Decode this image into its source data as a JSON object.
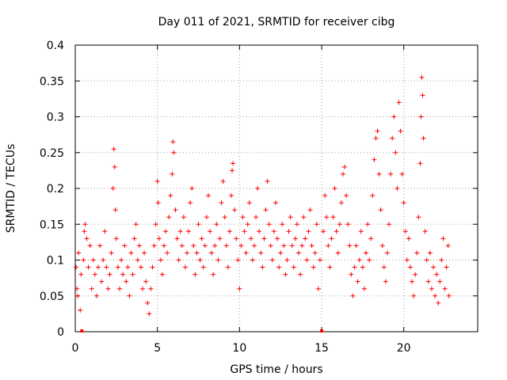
{
  "chart_data": {
    "type": "scatter",
    "title": "Day 011 of 2021, SRMTID for receiver cibg",
    "xlabel": "GPS time / hours",
    "ylabel": "SRMTID / TECUs",
    "xlim": [
      0,
      24.5
    ],
    "ylim": [
      0,
      0.4
    ],
    "x_ticks": [
      0,
      5,
      10,
      15,
      20
    ],
    "x_tick_labels": [
      "0",
      "5",
      "10",
      "15",
      "20"
    ],
    "y_ticks": [
      0,
      0.05,
      0.1,
      0.15,
      0.2,
      0.25,
      0.3,
      0.35,
      0.4
    ],
    "y_tick_labels": [
      "0",
      "0.05",
      "0.1",
      "0.15",
      "0.2",
      "0.25",
      "0.3",
      "0.35",
      "0.4"
    ],
    "grid": true,
    "marker": "+",
    "color": "#ff0000",
    "data_gaps_marked_at_hours": [
      0.4,
      15.0
    ],
    "series": [
      {
        "name": "SRMTID",
        "points": [
          [
            0.05,
            0.09
          ],
          [
            0.1,
            0.06
          ],
          [
            0.15,
            0.05
          ],
          [
            0.2,
            0.11
          ],
          [
            0.3,
            0.03
          ],
          [
            0.35,
            0.08
          ],
          [
            0.5,
            0.1
          ],
          [
            0.55,
            0.14
          ],
          [
            0.6,
            0.15
          ],
          [
            0.7,
            0.13
          ],
          [
            0.8,
            0.09
          ],
          [
            0.9,
            0.12
          ],
          [
            1.0,
            0.06
          ],
          [
            1.1,
            0.1
          ],
          [
            1.2,
            0.08
          ],
          [
            1.3,
            0.05
          ],
          [
            1.4,
            0.09
          ],
          [
            1.5,
            0.12
          ],
          [
            1.6,
            0.07
          ],
          [
            1.7,
            0.1
          ],
          [
            1.8,
            0.14
          ],
          [
            1.9,
            0.09
          ],
          [
            2.0,
            0.06
          ],
          [
            2.1,
            0.08
          ],
          [
            2.2,
            0.11
          ],
          [
            2.3,
            0.2
          ],
          [
            2.35,
            0.255
          ],
          [
            2.4,
            0.23
          ],
          [
            2.45,
            0.17
          ],
          [
            2.5,
            0.13
          ],
          [
            2.6,
            0.09
          ],
          [
            2.7,
            0.06
          ],
          [
            2.8,
            0.1
          ],
          [
            2.9,
            0.08
          ],
          [
            3.0,
            0.12
          ],
          [
            3.1,
            0.07
          ],
          [
            3.2,
            0.09
          ],
          [
            3.3,
            0.05
          ],
          [
            3.4,
            0.11
          ],
          [
            3.5,
            0.08
          ],
          [
            3.6,
            0.13
          ],
          [
            3.7,
            0.15
          ],
          [
            3.8,
            0.1
          ],
          [
            3.9,
            0.12
          ],
          [
            4.0,
            0.09
          ],
          [
            4.1,
            0.06
          ],
          [
            4.2,
            0.11
          ],
          [
            4.3,
            0.07
          ],
          [
            4.4,
            0.04
          ],
          [
            4.5,
            0.025
          ],
          [
            4.6,
            0.06
          ],
          [
            4.7,
            0.09
          ],
          [
            4.8,
            0.12
          ],
          [
            4.9,
            0.15
          ],
          [
            5.0,
            0.21
          ],
          [
            5.05,
            0.18
          ],
          [
            5.1,
            0.13
          ],
          [
            5.2,
            0.1
          ],
          [
            5.3,
            0.08
          ],
          [
            5.4,
            0.12
          ],
          [
            5.5,
            0.14
          ],
          [
            5.6,
            0.11
          ],
          [
            5.7,
            0.16
          ],
          [
            5.8,
            0.19
          ],
          [
            5.9,
            0.22
          ],
          [
            5.95,
            0.265
          ],
          [
            6.0,
            0.25
          ],
          [
            6.1,
            0.17
          ],
          [
            6.2,
            0.13
          ],
          [
            6.3,
            0.1
          ],
          [
            6.4,
            0.14
          ],
          [
            6.5,
            0.12
          ],
          [
            6.6,
            0.16
          ],
          [
            6.7,
            0.09
          ],
          [
            6.8,
            0.11
          ],
          [
            6.9,
            0.14
          ],
          [
            7.0,
            0.18
          ],
          [
            7.1,
            0.2
          ],
          [
            7.2,
            0.12
          ],
          [
            7.3,
            0.08
          ],
          [
            7.4,
            0.11
          ],
          [
            7.5,
            0.15
          ],
          [
            7.6,
            0.1
          ],
          [
            7.7,
            0.13
          ],
          [
            7.8,
            0.09
          ],
          [
            7.9,
            0.12
          ],
          [
            8.0,
            0.16
          ],
          [
            8.1,
            0.19
          ],
          [
            8.2,
            0.14
          ],
          [
            8.3,
            0.11
          ],
          [
            8.4,
            0.08
          ],
          [
            8.5,
            0.12
          ],
          [
            8.6,
            0.15
          ],
          [
            8.7,
            0.1
          ],
          [
            8.8,
            0.13
          ],
          [
            8.9,
            0.18
          ],
          [
            9.0,
            0.21
          ],
          [
            9.1,
            0.16
          ],
          [
            9.2,
            0.12
          ],
          [
            9.3,
            0.09
          ],
          [
            9.4,
            0.14
          ],
          [
            9.5,
            0.19
          ],
          [
            9.55,
            0.225
          ],
          [
            9.6,
            0.235
          ],
          [
            9.7,
            0.17
          ],
          [
            9.8,
            0.13
          ],
          [
            9.9,
            0.1
          ],
          [
            10.0,
            0.06
          ],
          [
            10.1,
            0.12
          ],
          [
            10.2,
            0.16
          ],
          [
            10.3,
            0.14
          ],
          [
            10.4,
            0.11
          ],
          [
            10.5,
            0.15
          ],
          [
            10.6,
            0.18
          ],
          [
            10.7,
            0.13
          ],
          [
            10.8,
            0.1
          ],
          [
            10.9,
            0.12
          ],
          [
            11.0,
            0.16
          ],
          [
            11.1,
            0.2
          ],
          [
            11.2,
            0.14
          ],
          [
            11.3,
            0.11
          ],
          [
            11.4,
            0.09
          ],
          [
            11.5,
            0.13
          ],
          [
            11.6,
            0.17
          ],
          [
            11.7,
            0.21
          ],
          [
            11.8,
            0.15
          ],
          [
            11.9,
            0.12
          ],
          [
            12.0,
            0.1
          ],
          [
            12.1,
            0.14
          ],
          [
            12.2,
            0.18
          ],
          [
            12.3,
            0.13
          ],
          [
            12.4,
            0.09
          ],
          [
            12.5,
            0.11
          ],
          [
            12.6,
            0.15
          ],
          [
            12.7,
            0.12
          ],
          [
            12.8,
            0.08
          ],
          [
            12.9,
            0.1
          ],
          [
            13.0,
            0.14
          ],
          [
            13.1,
            0.16
          ],
          [
            13.2,
            0.12
          ],
          [
            13.3,
            0.09
          ],
          [
            13.4,
            0.13
          ],
          [
            13.5,
            0.15
          ],
          [
            13.6,
            0.11
          ],
          [
            13.7,
            0.08
          ],
          [
            13.8,
            0.12
          ],
          [
            13.9,
            0.16
          ],
          [
            14.0,
            0.13
          ],
          [
            14.1,
            0.1
          ],
          [
            14.2,
            0.14
          ],
          [
            14.3,
            0.17
          ],
          [
            14.4,
            0.12
          ],
          [
            14.5,
            0.09
          ],
          [
            14.6,
            0.11
          ],
          [
            14.7,
            0.15
          ],
          [
            14.8,
            0.06
          ],
          [
            14.9,
            0.1
          ],
          [
            15.1,
            0.14
          ],
          [
            15.2,
            0.19
          ],
          [
            15.3,
            0.16
          ],
          [
            15.4,
            0.12
          ],
          [
            15.5,
            0.09
          ],
          [
            15.6,
            0.13
          ],
          [
            15.7,
            0.16
          ],
          [
            15.8,
            0.2
          ],
          [
            15.9,
            0.14
          ],
          [
            16.0,
            0.11
          ],
          [
            16.1,
            0.15
          ],
          [
            16.2,
            0.18
          ],
          [
            16.3,
            0.22
          ],
          [
            16.4,
            0.23
          ],
          [
            16.5,
            0.19
          ],
          [
            16.6,
            0.15
          ],
          [
            16.7,
            0.12
          ],
          [
            16.8,
            0.08
          ],
          [
            16.9,
            0.05
          ],
          [
            17.0,
            0.09
          ],
          [
            17.1,
            0.12
          ],
          [
            17.2,
            0.07
          ],
          [
            17.3,
            0.1
          ],
          [
            17.4,
            0.14
          ],
          [
            17.5,
            0.09
          ],
          [
            17.6,
            0.06
          ],
          [
            17.7,
            0.11
          ],
          [
            17.8,
            0.15
          ],
          [
            17.9,
            0.1
          ],
          [
            18.0,
            0.13
          ],
          [
            18.1,
            0.19
          ],
          [
            18.2,
            0.24
          ],
          [
            18.3,
            0.27
          ],
          [
            18.4,
            0.28
          ],
          [
            18.5,
            0.22
          ],
          [
            18.6,
            0.17
          ],
          [
            18.7,
            0.12
          ],
          [
            18.8,
            0.09
          ],
          [
            18.9,
            0.07
          ],
          [
            19.0,
            0.11
          ],
          [
            19.1,
            0.15
          ],
          [
            19.2,
            0.22
          ],
          [
            19.3,
            0.27
          ],
          [
            19.4,
            0.3
          ],
          [
            19.5,
            0.25
          ],
          [
            19.6,
            0.2
          ],
          [
            19.7,
            0.32
          ],
          [
            19.8,
            0.28
          ],
          [
            19.9,
            0.22
          ],
          [
            20.0,
            0.18
          ],
          [
            20.1,
            0.14
          ],
          [
            20.2,
            0.1
          ],
          [
            20.3,
            0.13
          ],
          [
            20.4,
            0.09
          ],
          [
            20.5,
            0.07
          ],
          [
            20.6,
            0.05
          ],
          [
            20.7,
            0.08
          ],
          [
            20.8,
            0.11
          ],
          [
            20.9,
            0.16
          ],
          [
            21.0,
            0.235
          ],
          [
            21.05,
            0.3
          ],
          [
            21.1,
            0.355
          ],
          [
            21.15,
            0.33
          ],
          [
            21.2,
            0.27
          ],
          [
            21.3,
            0.14
          ],
          [
            21.4,
            0.1
          ],
          [
            21.5,
            0.07
          ],
          [
            21.6,
            0.11
          ],
          [
            21.7,
            0.06
          ],
          [
            21.8,
            0.09
          ],
          [
            21.9,
            0.05
          ],
          [
            22.0,
            0.08
          ],
          [
            22.1,
            0.04
          ],
          [
            22.2,
            0.07
          ],
          [
            22.3,
            0.1
          ],
          [
            22.4,
            0.13
          ],
          [
            22.5,
            0.06
          ],
          [
            22.6,
            0.09
          ],
          [
            22.7,
            0.12
          ],
          [
            22.75,
            0.05
          ]
        ]
      }
    ]
  }
}
